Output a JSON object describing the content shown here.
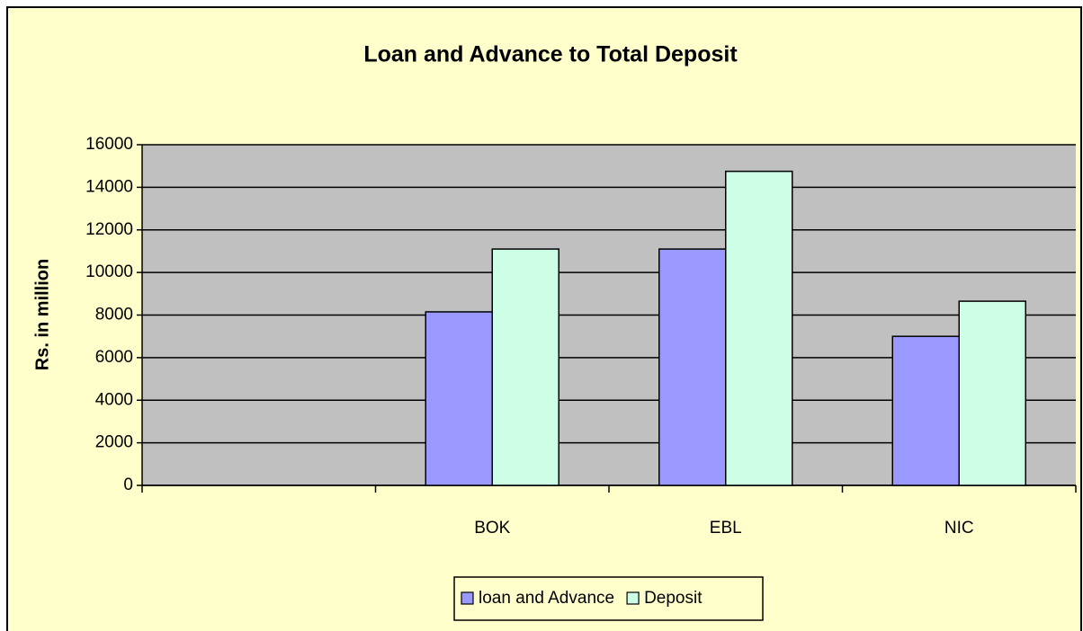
{
  "chart_data": {
    "type": "bar",
    "title": "Loan and Advance to Total Deposit",
    "y_label": "Rs. in million",
    "categories": [
      null,
      "BOK",
      "EBL",
      "NIC"
    ],
    "series": [
      {
        "name": "loan and Advance",
        "color": "#9999ff",
        "values": [
          null,
          8150,
          11100,
          7000
        ]
      },
      {
        "name": "Deposit",
        "color": "#ccffe6",
        "values": [
          null,
          11100,
          14750,
          8650
        ]
      }
    ],
    "ylim": [
      0,
      16000
    ],
    "yticks": [
      0,
      2000,
      4000,
      6000,
      8000,
      10000,
      12000,
      14000,
      16000
    ],
    "grid": true,
    "legend": "bottom"
  }
}
